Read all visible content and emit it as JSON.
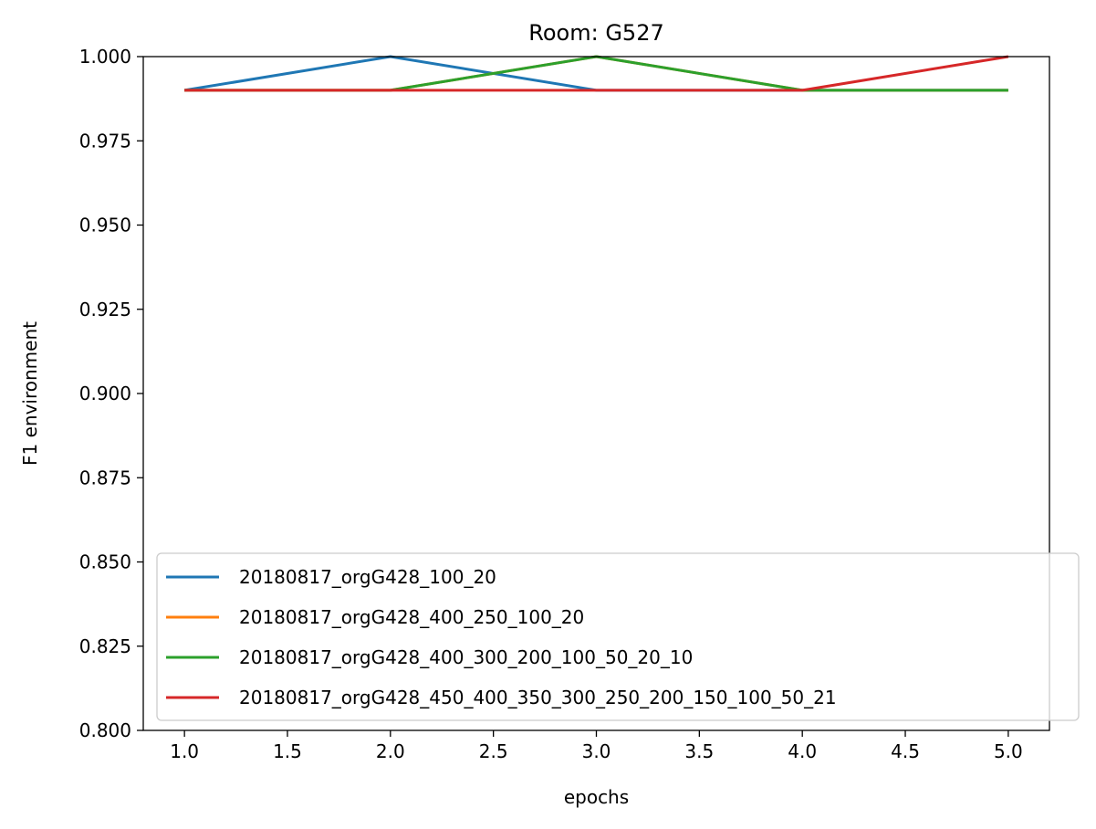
{
  "chart_data": {
    "type": "line",
    "title": "Room: G527",
    "xlabel": "epochs",
    "ylabel": "F1 environment",
    "xlim": [
      0.8,
      5.2
    ],
    "ylim": [
      0.8,
      1.0
    ],
    "xticks": [
      1.0,
      1.5,
      2.0,
      2.5,
      3.0,
      3.5,
      4.0,
      4.5,
      5.0
    ],
    "xtick_labels": [
      "1.0",
      "1.5",
      "2.0",
      "2.5",
      "3.0",
      "3.5",
      "4.0",
      "4.5",
      "5.0"
    ],
    "yticks": [
      0.8,
      0.825,
      0.85,
      0.875,
      0.9,
      0.925,
      0.95,
      0.975,
      1.0
    ],
    "ytick_labels": [
      "0.800",
      "0.825",
      "0.850",
      "0.875",
      "0.900",
      "0.925",
      "0.950",
      "0.975",
      "1.000"
    ],
    "grid": false,
    "legend_position": "lower-left",
    "x": [
      1,
      2,
      3,
      4,
      5
    ],
    "series": [
      {
        "name": "20180817_orgG428_100_20",
        "color": "#1f77b4",
        "values": [
          0.99,
          1.0,
          0.99,
          0.99,
          0.99
        ]
      },
      {
        "name": "20180817_orgG428_400_250_100_20",
        "color": "#ff7f0e",
        "values": [
          0.99,
          0.99,
          1.0,
          0.99,
          0.99
        ]
      },
      {
        "name": "20180817_orgG428_400_300_200_100_50_20_10",
        "color": "#2ca02c",
        "values": [
          0.99,
          0.99,
          1.0,
          0.99,
          0.99
        ]
      },
      {
        "name": "20180817_orgG428_450_400_350_300_250_200_150_100_50_21",
        "color": "#d62728",
        "values": [
          0.99,
          0.99,
          0.99,
          0.99,
          1.0
        ]
      }
    ]
  }
}
